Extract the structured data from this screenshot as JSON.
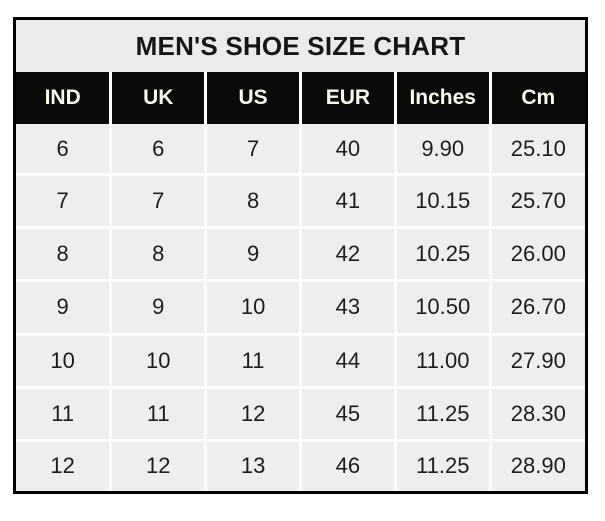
{
  "chart_data": {
    "type": "table",
    "title": "MEN'S SHOE SIZE CHART",
    "columns": [
      "IND",
      "UK",
      "US",
      "EUR",
      "Inches",
      "Cm"
    ],
    "rows": [
      [
        "6",
        "6",
        "7",
        "40",
        "9.90",
        "25.10"
      ],
      [
        "7",
        "7",
        "8",
        "41",
        "10.15",
        "25.70"
      ],
      [
        "8",
        "8",
        "9",
        "42",
        "10.25",
        "26.00"
      ],
      [
        "9",
        "9",
        "10",
        "43",
        "10.50",
        "26.70"
      ],
      [
        "10",
        "10",
        "11",
        "44",
        "11.00",
        "27.90"
      ],
      [
        "11",
        "11",
        "12",
        "45",
        "11.25",
        "28.30"
      ],
      [
        "12",
        "12",
        "13",
        "46",
        "11.25",
        "28.90"
      ]
    ],
    "layout": {
      "title_band": "light-gray full-width top band",
      "header_style": "black band, white bold labels, white vertical separators",
      "grid": "white gridlines between light-gray body cells",
      "frame": "black outer border"
    }
  },
  "colors": {
    "page_bg": "#ffffff",
    "frame_border": "#000000",
    "title_band_bg": "#ebebeb",
    "title_text": "#161616",
    "header_bg": "#0a0a0a",
    "header_text": "#faf8ef",
    "cell_bg": "#efeeec",
    "gridline": "#fbfbfa",
    "body_text": "#1d1d1b"
  }
}
